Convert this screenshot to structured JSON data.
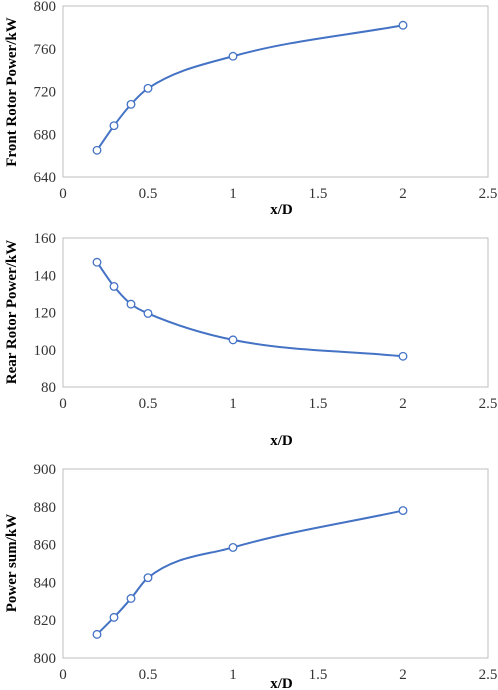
{
  "chart_data": [
    {
      "type": "line",
      "x": [
        0.2,
        0.3,
        0.4,
        0.5,
        1,
        2
      ],
      "values": [
        665,
        688,
        708,
        723,
        753,
        782
      ],
      "xlabel": "x/D",
      "ylabel": "Front Rotor Power/kW",
      "xlim": [
        0,
        2.5
      ],
      "ylim": [
        640,
        800
      ],
      "xticks": [
        "0",
        "0.5",
        "1",
        "1.5",
        "2",
        "2.5"
      ],
      "yticks": [
        "640",
        "680",
        "720",
        "760",
        "800"
      ],
      "grid": false,
      "color": "#4472c4",
      "smooth": true
    },
    {
      "type": "line",
      "x": [
        0.2,
        0.3,
        0.4,
        0.5,
        1,
        2
      ],
      "values": [
        147,
        134,
        124.5,
        119.5,
        105.3,
        96.5
      ],
      "xlabel": "x/D",
      "ylabel": "Rear Rotor Power/kW",
      "xlim": [
        0,
        2.5
      ],
      "ylim": [
        80,
        160
      ],
      "xticks": [
        "0",
        "0.5",
        "1",
        "1.5",
        "2",
        "2.5"
      ],
      "yticks": [
        "80",
        "100",
        "120",
        "140",
        "160"
      ],
      "grid": false,
      "color": "#4472c4",
      "smooth": true
    },
    {
      "type": "line",
      "x": [
        0.2,
        0.3,
        0.4,
        0.5,
        1,
        2
      ],
      "values": [
        812.5,
        821.5,
        831.5,
        842.5,
        858.5,
        878
      ],
      "xlabel": "x/D",
      "ylabel": "Power sum/kW",
      "xlim": [
        0,
        2.5
      ],
      "ylim": [
        800,
        900
      ],
      "xticks": [
        "0",
        "0.5",
        "1",
        "1.5",
        "2",
        "2.5"
      ],
      "yticks": [
        "800",
        "820",
        "840",
        "860",
        "880",
        "900"
      ],
      "grid": false,
      "color": "#4472c4",
      "smooth": true
    }
  ]
}
